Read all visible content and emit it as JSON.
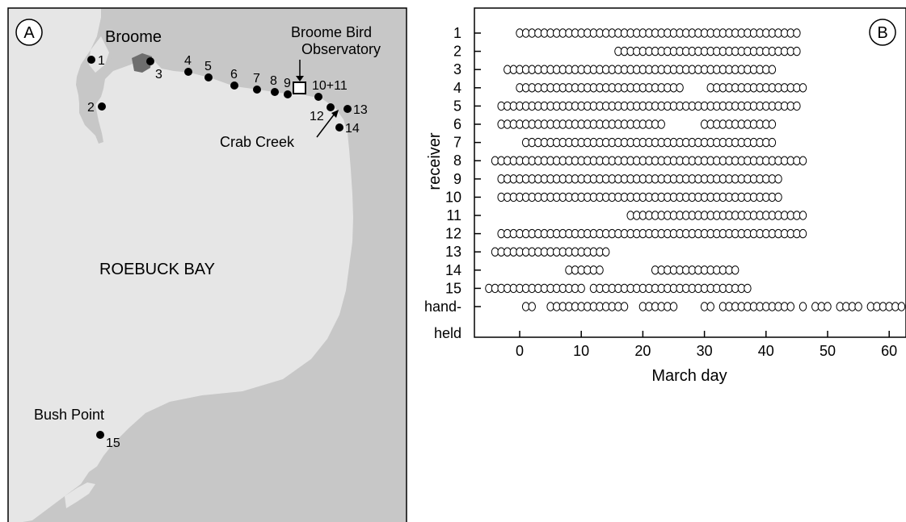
{
  "panel_a": {
    "panel_label": "A",
    "town_label": "Broome",
    "observatory_label_line1": "Broome Bird",
    "observatory_label_line2": "Observatory",
    "bay_label": "ROEBUCK BAY",
    "creek_label": "Crab Creek",
    "point_label": "Bush Point",
    "station_labels": [
      "1",
      "2",
      "3",
      "4",
      "5",
      "6",
      "7",
      "8",
      "9",
      "10+11",
      "12",
      "13",
      "14",
      "15"
    ],
    "colors": {
      "land": "#c7c7c7",
      "water": "#e6e6e6",
      "town": "#6e6e6e"
    }
  },
  "chart_data": {
    "type": "scatter",
    "panel_label": "B",
    "xlabel": "March day",
    "ylabel": "receiver",
    "xlim": [
      -6,
      64
    ],
    "x_ticks": [
      0,
      10,
      20,
      30,
      40,
      50,
      60
    ],
    "categories": [
      "1",
      "2",
      "3",
      "4",
      "5",
      "6",
      "7",
      "8",
      "9",
      "10",
      "11",
      "12",
      "13",
      "14",
      "15",
      "hand-\nheld"
    ],
    "category_tick_labels": [
      "1",
      "2",
      "3",
      "4",
      "5",
      "6",
      "7",
      "8",
      "9",
      "10",
      "11",
      "12",
      "13",
      "14",
      "15",
      "hand-"
    ],
    "extra_label": "held",
    "marker": "open-circle",
    "detection_runs_day_ranges": [
      [
        [
          0,
          45
        ]
      ],
      [
        [
          16,
          45
        ]
      ],
      [
        [
          -2,
          41
        ]
      ],
      [
        [
          0,
          26
        ],
        [
          31,
          46
        ]
      ],
      [
        [
          -3,
          45
        ]
      ],
      [
        [
          -3,
          23
        ],
        [
          30,
          41
        ]
      ],
      [
        [
          1,
          41
        ]
      ],
      [
        [
          -4,
          46
        ]
      ],
      [
        [
          -3,
          42
        ]
      ],
      [
        [
          -3,
          42
        ]
      ],
      [
        [
          18,
          46
        ]
      ],
      [
        [
          -3,
          46
        ]
      ],
      [
        [
          -4,
          14
        ]
      ],
      [
        [
          8,
          13
        ],
        [
          22,
          35
        ]
      ],
      [
        [
          -5,
          10
        ],
        [
          12,
          37
        ]
      ],
      [
        [
          1,
          2
        ],
        [
          5,
          17
        ],
        [
          20,
          25
        ],
        [
          30,
          31
        ],
        [
          33,
          44
        ],
        [
          46,
          46
        ],
        [
          48,
          50
        ],
        [
          52,
          55
        ],
        [
          57,
          62
        ]
      ]
    ]
  }
}
